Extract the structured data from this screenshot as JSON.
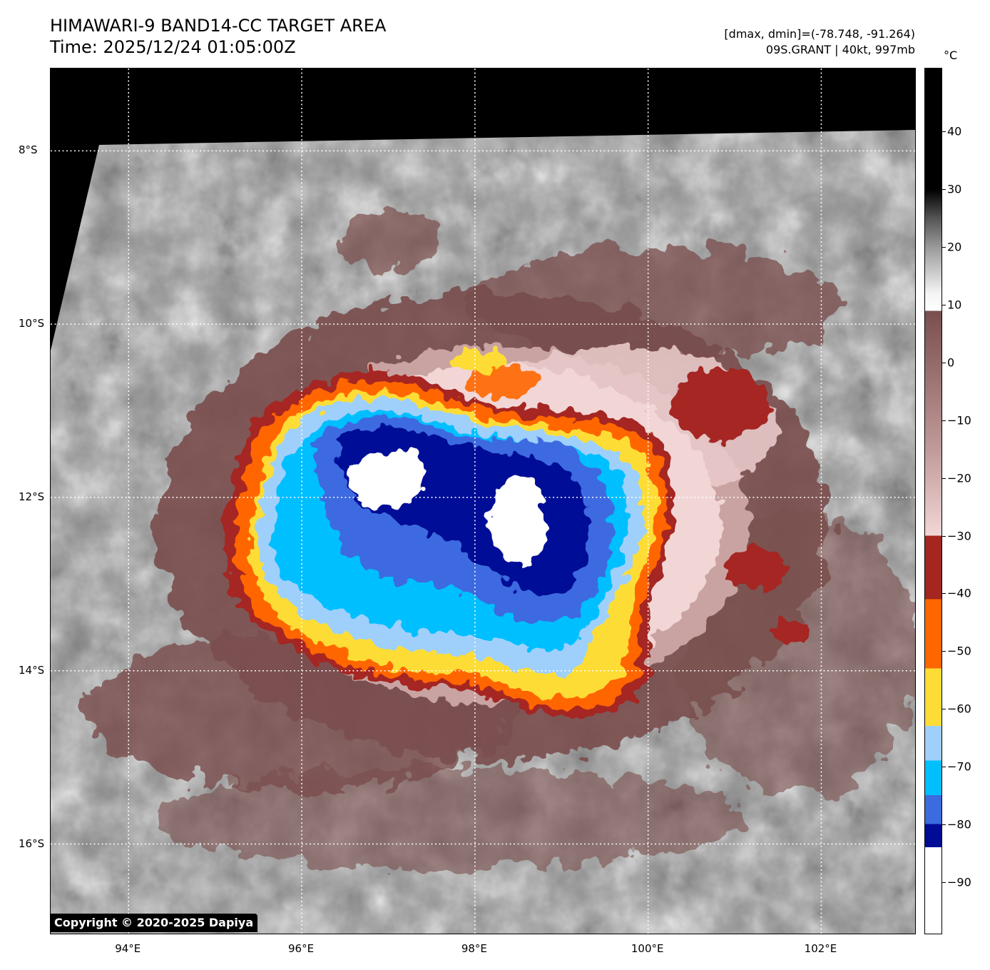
{
  "header": {
    "title_line1": "HIMAWARI-9 BAND14-CC TARGET AREA",
    "title_line2": "Time: 2025/12/24 01:05:00Z",
    "info_line1": "[dmax, dmin]=(-78.748, -91.264)",
    "info_line2": "09S.GRANT | 40kt, 997mb"
  },
  "map": {
    "lat_labels": [
      "8°S",
      "10°S",
      "12°S",
      "14°S",
      "16°S"
    ],
    "lon_labels": [
      "94°E",
      "96°E",
      "98°E",
      "100°E",
      "102°E"
    ],
    "lat_values": [
      -8,
      -10,
      -12,
      -14,
      -16
    ],
    "lon_values": [
      94,
      96,
      98,
      100,
      102
    ],
    "lat_range": [
      -17.05,
      -7.05
    ],
    "lon_range": [
      93.1,
      103.1
    ],
    "grid": true,
    "copyright": "Copyright © 2020-2025 Dapiya"
  },
  "colorbar": {
    "unit": "°C",
    "range": [
      -99,
      51
    ],
    "ticks": [
      "40",
      "30",
      "20",
      "10",
      "0",
      "−10",
      "−20",
      "−30",
      "−40",
      "−50",
      "−60",
      "−70",
      "−80",
      "−90"
    ],
    "tick_values": [
      40,
      30,
      20,
      10,
      0,
      -10,
      -20,
      -30,
      -40,
      -50,
      -60,
      -70,
      -80,
      -90
    ],
    "colors": {
      "black": "#000000",
      "white": "#ffffff",
      "brown_warm": "#7a4e4d",
      "pink_cold": "#f2d6d6",
      "dark_red": "#a52520",
      "orange": "#ff6600",
      "yellow": "#fddd35",
      "light_blue": "#9fd0fb",
      "cyan": "#00bfff",
      "royal_blue": "#3c6ae0",
      "navy": "#000c96",
      "gray_dark": "#6e6e6e",
      "gray_light": "#c9c9c9"
    }
  }
}
